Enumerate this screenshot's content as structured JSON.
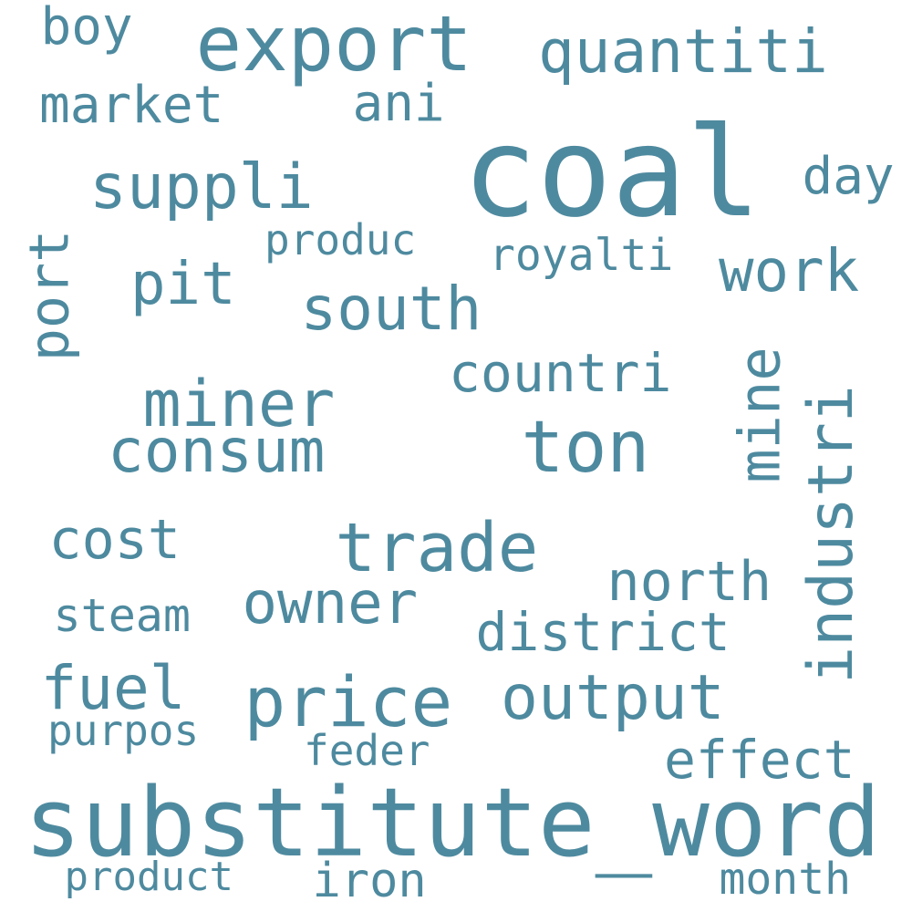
{
  "color": "#4e8a9f",
  "words": [
    {
      "text": "coal"
    },
    {
      "text": "substitute_word"
    },
    {
      "text": "ton"
    },
    {
      "text": "export"
    },
    {
      "text": "price"
    },
    {
      "text": "output"
    },
    {
      "text": "miner"
    },
    {
      "text": "trade"
    },
    {
      "text": "mine"
    },
    {
      "text": "owner"
    },
    {
      "text": "industri"
    },
    {
      "text": "quantiti"
    },
    {
      "text": "suppli"
    },
    {
      "text": "south"
    },
    {
      "text": "work"
    },
    {
      "text": "consum"
    },
    {
      "text": "north"
    },
    {
      "text": "countri"
    },
    {
      "text": "pit"
    },
    {
      "text": "fuel"
    },
    {
      "text": "cost"
    },
    {
      "text": "district"
    },
    {
      "text": "effect"
    },
    {
      "text": "market"
    },
    {
      "text": "ani"
    },
    {
      "text": "day"
    },
    {
      "text": "boy"
    },
    {
      "text": "port"
    },
    {
      "text": "steam"
    },
    {
      "text": "royalti"
    },
    {
      "text": "produc"
    },
    {
      "text": "purpos"
    },
    {
      "text": "feder"
    },
    {
      "text": "product"
    },
    {
      "text": "iron"
    },
    {
      "text": "month"
    }
  ]
}
